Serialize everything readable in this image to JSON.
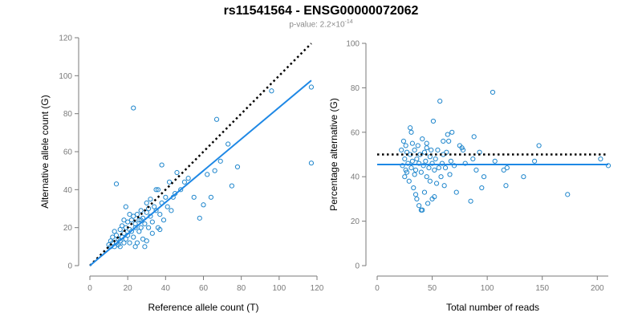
{
  "title": "rs11541564 - ENSG00000072062",
  "subtitle": {
    "prefix": "p-value: 2.2×10",
    "exponent": "-14"
  },
  "colors": {
    "points": "#1f86cc",
    "fit_line": "#1e88e5",
    "reference_line": "#000000",
    "axis": "#7a7a7a"
  },
  "chart_data": [
    {
      "type": "scatter",
      "panel": "left",
      "title": "",
      "xlabel": "Reference allele count (T)",
      "ylabel": "Alternative allele count (G)",
      "xlim": [
        0,
        120
      ],
      "ylim": [
        0,
        120
      ],
      "xticks": [
        0,
        20,
        40,
        60,
        80,
        100,
        120
      ],
      "yticks": [
        0,
        20,
        40,
        60,
        80,
        100,
        120
      ],
      "grid": false,
      "fit_line": {
        "x": [
          0,
          117
        ],
        "y": [
          0,
          97.5
        ]
      },
      "reference_line": {
        "x": [
          0,
          117
        ],
        "y": [
          0,
          117
        ]
      },
      "points": [
        [
          10,
          11
        ],
        [
          11,
          13
        ],
        [
          12,
          12
        ],
        [
          12,
          15
        ],
        [
          13,
          10
        ],
        [
          13,
          18
        ],
        [
          14,
          12
        ],
        [
          14,
          16
        ],
        [
          15,
          14
        ],
        [
          15,
          11
        ],
        [
          16,
          19
        ],
        [
          16,
          13
        ],
        [
          17,
          15
        ],
        [
          17,
          21
        ],
        [
          18,
          12
        ],
        [
          18,
          17
        ],
        [
          19,
          20
        ],
        [
          19,
          14
        ],
        [
          20,
          23
        ],
        [
          20,
          16
        ],
        [
          21,
          19
        ],
        [
          21,
          12
        ],
        [
          22,
          24
        ],
        [
          22,
          18
        ],
        [
          23,
          26
        ],
        [
          23,
          15
        ],
        [
          24,
          20
        ],
        [
          24,
          22
        ],
        [
          25,
          27
        ],
        [
          25,
          12
        ],
        [
          26,
          24
        ],
        [
          26,
          18
        ],
        [
          27,
          29
        ],
        [
          27,
          20
        ],
        [
          28,
          25
        ],
        [
          28,
          14
        ],
        [
          29,
          22
        ],
        [
          30,
          28
        ],
        [
          30,
          33
        ],
        [
          31,
          30
        ],
        [
          31,
          20
        ],
        [
          32,
          26
        ],
        [
          32,
          35
        ],
        [
          33,
          23
        ],
        [
          34,
          31
        ],
        [
          35,
          29
        ],
        [
          35,
          40
        ],
        [
          36,
          20
        ],
        [
          37,
          27
        ],
        [
          38,
          33
        ],
        [
          39,
          24
        ],
        [
          40,
          36
        ],
        [
          41,
          31
        ],
        [
          42,
          44
        ],
        [
          43,
          29
        ],
        [
          44,
          36
        ],
        [
          45,
          38
        ],
        [
          46,
          49
        ],
        [
          48,
          40
        ],
        [
          50,
          44
        ],
        [
          52,
          46
        ],
        [
          55,
          36
        ],
        [
          58,
          25
        ],
        [
          60,
          32
        ],
        [
          62,
          48
        ],
        [
          64,
          36
        ],
        [
          66,
          50
        ],
        [
          67,
          77
        ],
        [
          69,
          55
        ],
        [
          73,
          64
        ],
        [
          75,
          42
        ],
        [
          78,
          52
        ],
        [
          96,
          92
        ],
        [
          117,
          94
        ],
        [
          117,
          54
        ],
        [
          23,
          83
        ],
        [
          14,
          43
        ],
        [
          19,
          31
        ],
        [
          24,
          10
        ],
        [
          29,
          10
        ],
        [
          33,
          17
        ],
        [
          37,
          19
        ],
        [
          18,
          24
        ],
        [
          21,
          27
        ],
        [
          27,
          24
        ],
        [
          30,
          13
        ],
        [
          36,
          40
        ],
        [
          38,
          53
        ],
        [
          11,
          10
        ],
        [
          16,
          10
        ]
      ]
    },
    {
      "type": "scatter",
      "panel": "right",
      "title": "",
      "xlabel": "Total number of reads",
      "ylabel": "Percentage alternative (G)",
      "xlim": [
        0,
        210
      ],
      "ylim": [
        0,
        100
      ],
      "xticks": [
        0,
        50,
        100,
        150,
        200
      ],
      "yticks": [
        0,
        20,
        40,
        60,
        80,
        100
      ],
      "grid": false,
      "fit_line": {
        "x": [
          0,
          210
        ],
        "y": [
          45.5,
          45.5
        ]
      },
      "reference_line": {
        "x": [
          0,
          210
        ],
        "y": [
          50,
          50
        ]
      },
      "points": [
        [
          22,
          52
        ],
        [
          23,
          45
        ],
        [
          24,
          56
        ],
        [
          25,
          48
        ],
        [
          25,
          40
        ],
        [
          26,
          54
        ],
        [
          27,
          42
        ],
        [
          27,
          51
        ],
        [
          28,
          46
        ],
        [
          29,
          38
        ],
        [
          30,
          62
        ],
        [
          30,
          50
        ],
        [
          31,
          44
        ],
        [
          32,
          47
        ],
        [
          32,
          55
        ],
        [
          33,
          35
        ],
        [
          34,
          41
        ],
        [
          34,
          52
        ],
        [
          35,
          43
        ],
        [
          36,
          30
        ],
        [
          36,
          48
        ],
        [
          37,
          54
        ],
        [
          38,
          46
        ],
        [
          38,
          27
        ],
        [
          39,
          50
        ],
        [
          40,
          42
        ],
        [
          40,
          25
        ],
        [
          41,
          57
        ],
        [
          42,
          45
        ],
        [
          43,
          33
        ],
        [
          43,
          51
        ],
        [
          44,
          47
        ],
        [
          45,
          40
        ],
        [
          45,
          53
        ],
        [
          46,
          28
        ],
        [
          47,
          44
        ],
        [
          48,
          38
        ],
        [
          48,
          49
        ],
        [
          49,
          52
        ],
        [
          50,
          46
        ],
        [
          50,
          30
        ],
        [
          51,
          65
        ],
        [
          52,
          43
        ],
        [
          53,
          48
        ],
        [
          54,
          37
        ],
        [
          55,
          52
        ],
        [
          56,
          44
        ],
        [
          57,
          74
        ],
        [
          58,
          40
        ],
        [
          59,
          46
        ],
        [
          60,
          50
        ],
        [
          61,
          36
        ],
        [
          62,
          44
        ],
        [
          63,
          51
        ],
        [
          64,
          59
        ],
        [
          65,
          56
        ],
        [
          66,
          41
        ],
        [
          67,
          47
        ],
        [
          70,
          45
        ],
        [
          72,
          33
        ],
        [
          75,
          54
        ],
        [
          77,
          53
        ],
        [
          80,
          46
        ],
        [
          85,
          29
        ],
        [
          87,
          48
        ],
        [
          88,
          58
        ],
        [
          90,
          43
        ],
        [
          93,
          51
        ],
        [
          95,
          35
        ],
        [
          97,
          40
        ],
        [
          105,
          78
        ],
        [
          107,
          47
        ],
        [
          115,
          43
        ],
        [
          117,
          36
        ],
        [
          118,
          44
        ],
        [
          133,
          40
        ],
        [
          143,
          47
        ],
        [
          147,
          54
        ],
        [
          173,
          32
        ],
        [
          203,
          48
        ],
        [
          210,
          45
        ],
        [
          26,
          43
        ],
        [
          31,
          60
        ],
        [
          35,
          32
        ],
        [
          41,
          25
        ],
        [
          45,
          55
        ],
        [
          52,
          31
        ],
        [
          60,
          56
        ],
        [
          68,
          60
        ],
        [
          78,
          52
        ]
      ]
    }
  ]
}
